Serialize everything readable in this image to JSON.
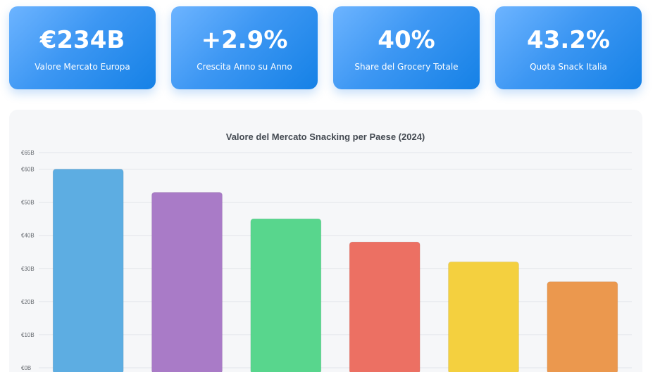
{
  "kpis": [
    {
      "value": "€234B",
      "label": "Valore Mercato Europa"
    },
    {
      "value": "+2.9%",
      "label": "Crescita Anno su Anno"
    },
    {
      "value": "40%",
      "label": "Share del Grocery Totale"
    },
    {
      "value": "43.2%",
      "label": "Quota Snack Italia"
    }
  ],
  "chart_data": {
    "type": "bar",
    "title": "Valore del Mercato Snacking per Paese (2024)",
    "xlabel": "",
    "ylabel": "",
    "ylim": [
      0,
      65
    ],
    "yticks": [
      {
        "value": 0,
        "label": "€0B"
      },
      {
        "value": 10,
        "label": "€10B"
      },
      {
        "value": 20,
        "label": "€20B"
      },
      {
        "value": 30,
        "label": "€30B"
      },
      {
        "value": 40,
        "label": "€40B"
      },
      {
        "value": 50,
        "label": "€50B"
      },
      {
        "value": 60,
        "label": "€60B"
      },
      {
        "value": 65,
        "label": "€65B"
      }
    ],
    "values": [
      60,
      53,
      45,
      38,
      32,
      26
    ],
    "colors": [
      "#5dade2",
      "#a97bc7",
      "#58d68d",
      "#ec7063",
      "#f4d03f",
      "#eb984e"
    ],
    "grid": true,
    "legend": "none"
  }
}
